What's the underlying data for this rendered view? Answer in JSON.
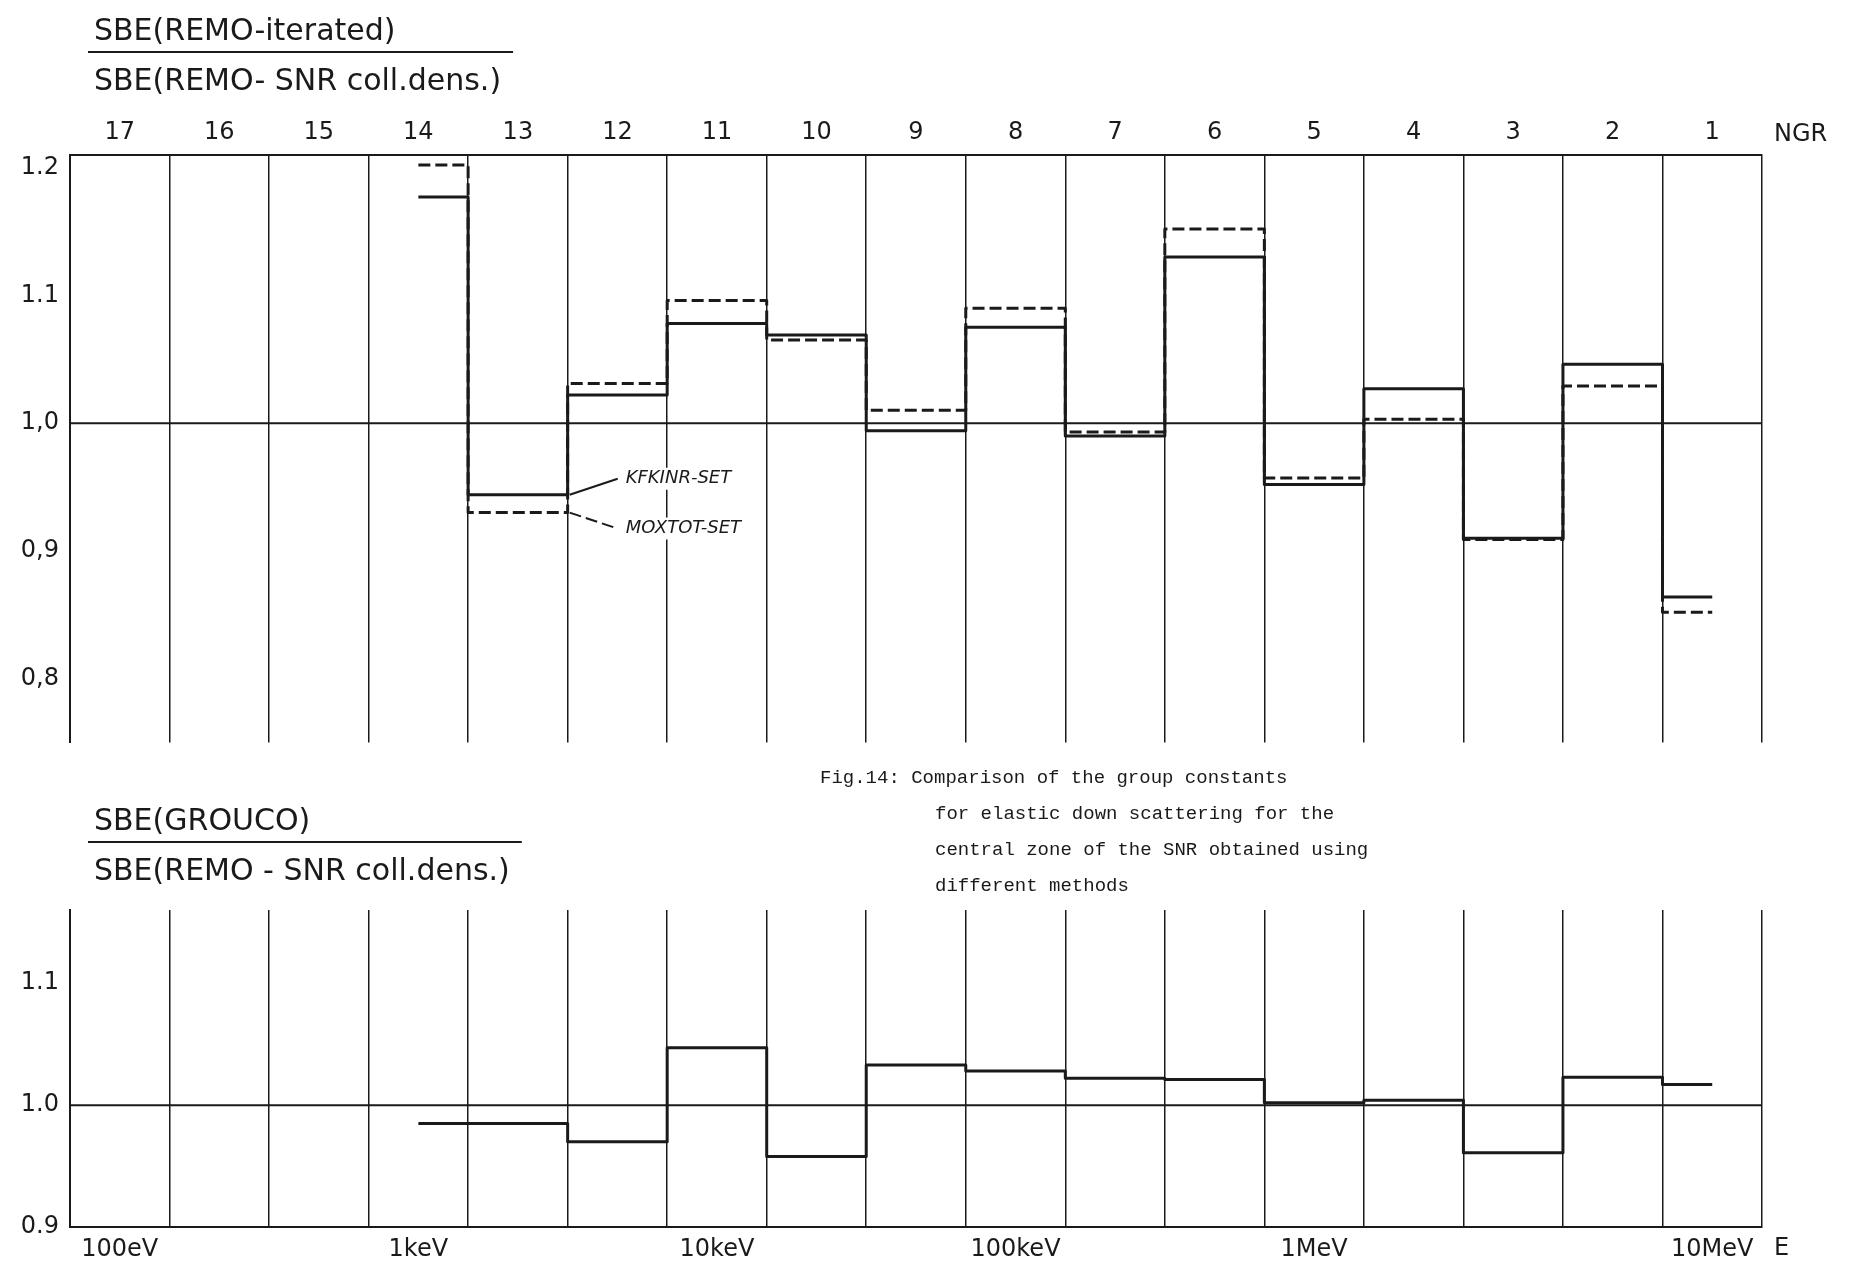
{
  "chart_data": [
    {
      "type": "step",
      "title": "SBE(REMO-iterated)",
      "subtitle": "SBE(REMO- SNR coll.dens.)",
      "categories": [
        "17",
        "16",
        "15",
        "14",
        "13",
        "12",
        "11",
        "10",
        "9",
        "8",
        "7",
        "6",
        "5",
        "4",
        "3",
        "2",
        "1"
      ],
      "xlabel": "NGR",
      "series": [
        {
          "name": "KFKINR-SET",
          "color": "#1a1a1a",
          "line_style": "solid",
          "values": [
            null,
            null,
            null,
            1.177,
            0.944,
            1.022,
            1.078,
            1.069,
            0.994,
            1.075,
            0.99,
            1.13,
            0.952,
            1.027,
            0.91,
            1.046,
            0.864
          ]
        },
        {
          "name": "MOXTOT-SET",
          "color": "#1a1a1a",
          "line_style": "dashed",
          "values": [
            null,
            null,
            null,
            1.202,
            0.93,
            1.031,
            1.096,
            1.065,
            1.01,
            1.09,
            0.993,
            1.152,
            0.957,
            1.003,
            0.909,
            1.029,
            0.852
          ]
        }
      ],
      "ylim": [
        0.75,
        1.21
      ],
      "yticks": [
        {
          "value": 0.8,
          "label": "0,8"
        },
        {
          "value": 0.9,
          "label": "0,9"
        },
        {
          "value": 1.0,
          "label": "1,0"
        },
        1.1,
        1.2
      ],
      "grid": "x",
      "legend": "center",
      "ref_lines": [
        {
          "axis": "y",
          "value": 1.0
        }
      ]
    },
    {
      "type": "step",
      "title": "SBE(GROUCO)",
      "subtitle": "SBE(REMO - SNR coll.dens.)",
      "categories": [
        "100eV",
        null,
        null,
        "1keV",
        null,
        null,
        "10keV",
        null,
        null,
        "100keV",
        null,
        null,
        "1MeV",
        null,
        null,
        null,
        "10MeV"
      ],
      "xlabel": "E",
      "values": [
        null,
        null,
        null,
        0.985,
        0.985,
        0.97,
        1.047,
        0.958,
        1.033,
        1.028,
        1.022,
        1.021,
        1.002,
        1.004,
        0.961,
        1.023,
        1.017
      ],
      "color": "#1a1a1a",
      "ylim": [
        0.9,
        1.16
      ],
      "yticks": [
        {
          "value": 0.9,
          "label": "0.9"
        },
        {
          "value": 1.0,
          "label": "1.0"
        },
        {
          "value": 1.1,
          "label": "1.1"
        }
      ],
      "grid": "x",
      "ref_lines": [
        {
          "axis": "y",
          "value": 1.0
        }
      ],
      "annotations": [
        "Fig.14: Comparison of the group constants for elastic down scattering for the central zone of the SNR obtained using different methods"
      ]
    }
  ]
}
